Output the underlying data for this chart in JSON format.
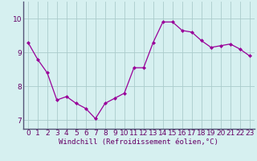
{
  "xlabel": "Windchill (Refroidissement éolien,°C)",
  "x": [
    0,
    1,
    2,
    3,
    4,
    5,
    6,
    7,
    8,
    9,
    10,
    11,
    12,
    13,
    14,
    15,
    16,
    17,
    18,
    19,
    20,
    21,
    22,
    23
  ],
  "y": [
    9.3,
    8.8,
    8.4,
    7.6,
    7.7,
    7.5,
    7.35,
    7.05,
    7.5,
    7.65,
    7.8,
    8.55,
    8.55,
    9.3,
    9.9,
    9.9,
    9.65,
    9.6,
    9.35,
    9.15,
    9.2,
    9.25,
    9.1,
    8.9
  ],
  "line_color": "#990099",
  "marker": "D",
  "marker_size": 2.0,
  "bg_color": "#d6f0f0",
  "grid_color": "#aacccc",
  "ylim": [
    6.75,
    10.5
  ],
  "yticks": [
    7,
    8,
    9,
    10
  ],
  "xticks": [
    0,
    1,
    2,
    3,
    4,
    5,
    6,
    7,
    8,
    9,
    10,
    11,
    12,
    13,
    14,
    15,
    16,
    17,
    18,
    19,
    20,
    21,
    22,
    23
  ],
  "xlabel_color": "#660066",
  "tick_color": "#660066",
  "spine_color": "#555577",
  "label_fontsize": 6.5,
  "tick_fontsize": 6.5
}
